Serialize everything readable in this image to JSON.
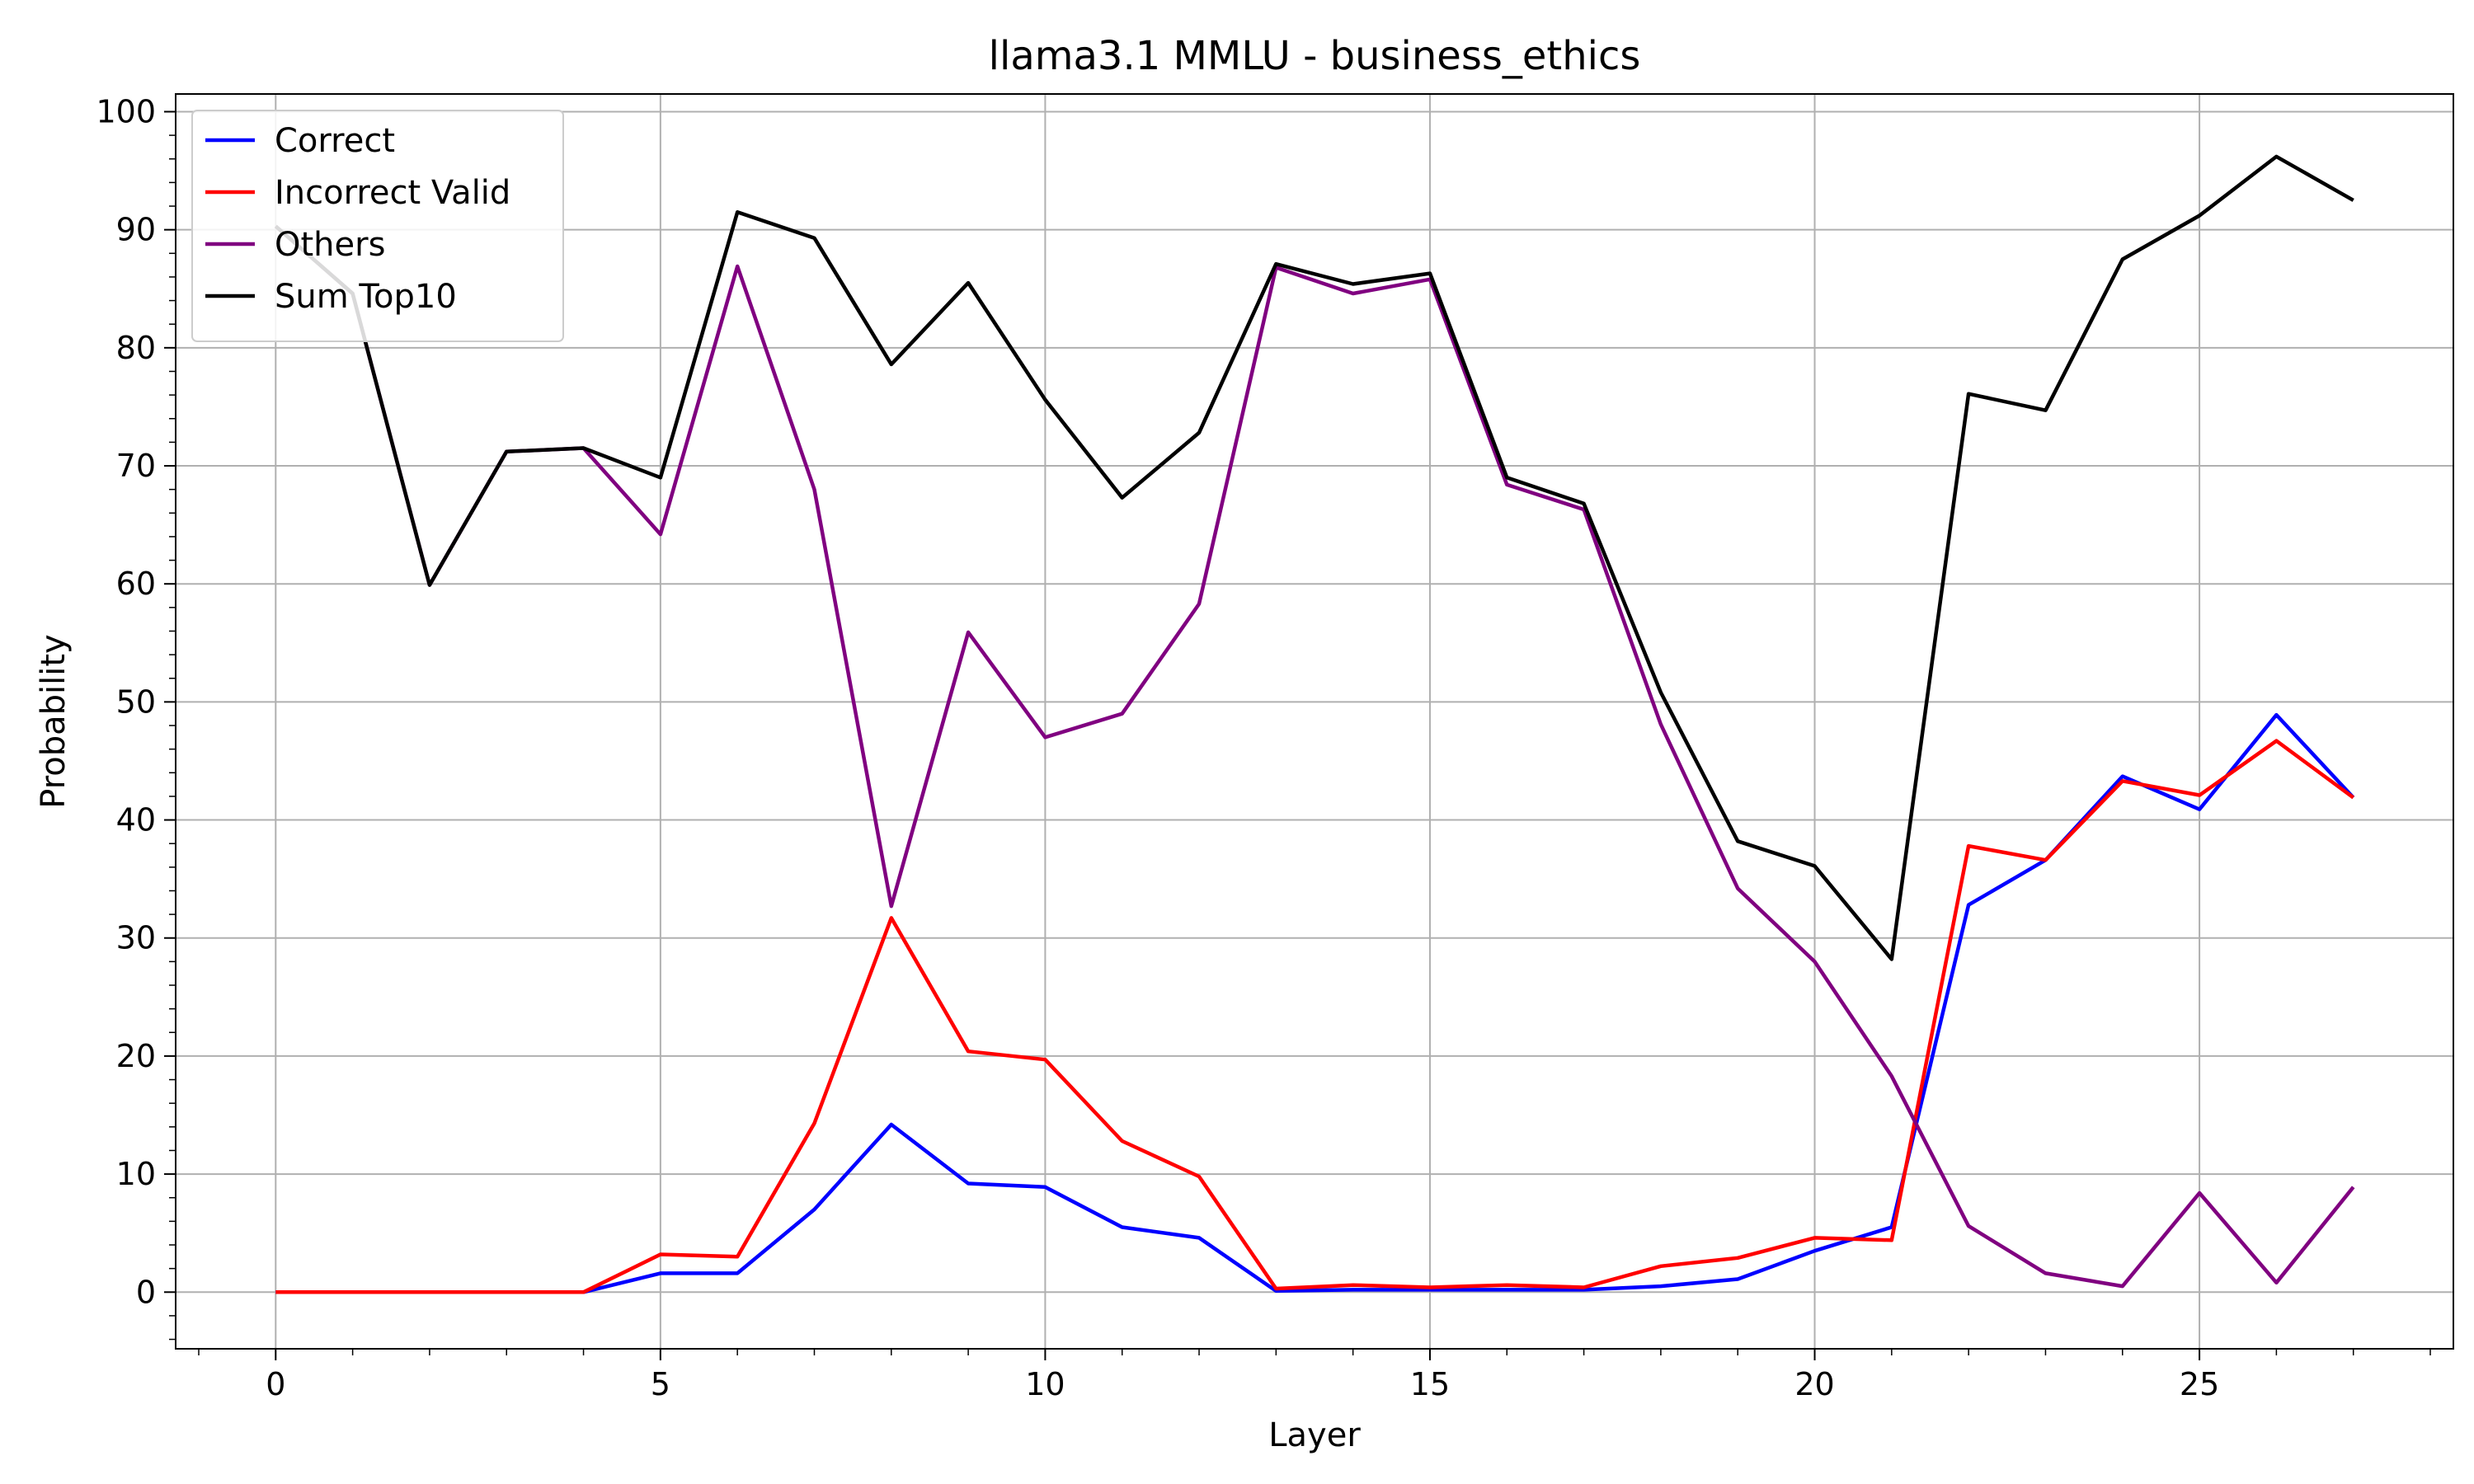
{
  "chart_data": {
    "type": "line",
    "title": "llama3.1 MMLU - business_ethics",
    "xlabel": "Layer",
    "ylabel": "Probability",
    "xlim": [
      -1.3,
      28.3
    ],
    "ylim": [
      -4.8,
      101.5
    ],
    "xticks": [
      0,
      5,
      10,
      15,
      20,
      25
    ],
    "yticks": [
      0,
      10,
      20,
      30,
      40,
      50,
      60,
      70,
      80,
      90,
      100
    ],
    "grid": true,
    "legend_position": "top-left",
    "x": [
      0,
      1,
      2,
      3,
      4,
      5,
      6,
      7,
      8,
      9,
      10,
      11,
      12,
      13,
      14,
      15,
      16,
      17,
      18,
      19,
      20,
      21,
      22,
      23,
      24,
      25,
      26,
      27
    ],
    "series": [
      {
        "name": "Correct",
        "color": "#0000ff",
        "values": [
          0,
          0,
          0,
          0,
          0,
          1.6,
          1.6,
          7.0,
          14.2,
          9.2,
          8.9,
          5.5,
          4.6,
          0.1,
          0.2,
          0.2,
          0.2,
          0.2,
          0.5,
          1.1,
          3.5,
          5.5,
          32.8,
          36.6,
          43.7,
          40.9,
          48.9,
          41.9
        ]
      },
      {
        "name": "Incorrect Valid",
        "color": "#ff0000",
        "values": [
          0,
          0,
          0,
          0,
          0,
          3.2,
          3.0,
          14.3,
          31.7,
          20.4,
          19.7,
          12.8,
          9.8,
          0.3,
          0.6,
          0.4,
          0.6,
          0.4,
          2.2,
          2.9,
          4.6,
          4.4,
          37.8,
          36.6,
          43.3,
          42.1,
          46.7,
          41.9
        ]
      },
      {
        "name": "Others",
        "color": "#800080",
        "values": [
          90.3,
          84.6,
          59.9,
          71.2,
          71.5,
          64.2,
          86.9,
          68.0,
          32.7,
          55.9,
          47.0,
          49.0,
          58.3,
          86.8,
          84.6,
          85.8,
          68.4,
          66.3,
          48.1,
          34.2,
          28.0,
          18.3,
          5.6,
          1.6,
          0.5,
          8.4,
          0.8,
          8.9
        ]
      },
      {
        "name": "Sum Top10",
        "color": "#000000",
        "values": [
          90.3,
          84.6,
          59.9,
          71.2,
          71.5,
          69.0,
          91.5,
          89.3,
          78.6,
          85.5,
          75.6,
          67.3,
          72.8,
          87.1,
          85.4,
          86.3,
          69.0,
          66.8,
          50.8,
          38.2,
          36.1,
          28.2,
          76.1,
          74.7,
          87.5,
          91.2,
          96.2,
          92.5
        ]
      }
    ]
  }
}
